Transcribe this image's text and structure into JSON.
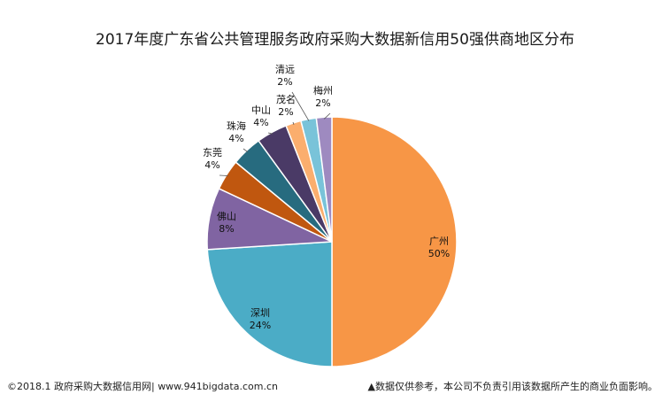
{
  "chart_data": {
    "type": "pie",
    "title": "2017年度广东省公共管理服务政府采购大数据新信用50强供商地区分布",
    "slices": [
      {
        "name": "广州",
        "value": 50,
        "label": "50%",
        "color": "#F79646"
      },
      {
        "name": "深圳",
        "value": 24,
        "label": "24%",
        "color": "#4BACC6"
      },
      {
        "name": "佛山",
        "value": 8,
        "label": "8%",
        "color": "#8064A2"
      },
      {
        "name": "东莞",
        "value": 4,
        "label": "4%",
        "color": "#C0570F"
      },
      {
        "name": "珠海",
        "value": 4,
        "label": "4%",
        "color": "#276B7F"
      },
      {
        "name": "中山",
        "value": 4,
        "label": "4%",
        "color": "#4A3A66"
      },
      {
        "name": "茂名",
        "value": 2,
        "label": "2%",
        "color": "#FBAE6E"
      },
      {
        "name": "清远",
        "value": 2,
        "label": "2%",
        "color": "#79C3D9"
      },
      {
        "name": "梅州",
        "value": 2,
        "label": "2%",
        "color": "#9E8AC0"
      }
    ],
    "start": "12 o'clock",
    "direction": "clockwise",
    "legend": "none"
  },
  "footer": {
    "left": "©2018.1 政府采购大数据信用网| www.941bigdata.com.cn",
    "right": "▲数据仅供参考，本公司不负责引用该数据所产生的商业负面影响。"
  }
}
